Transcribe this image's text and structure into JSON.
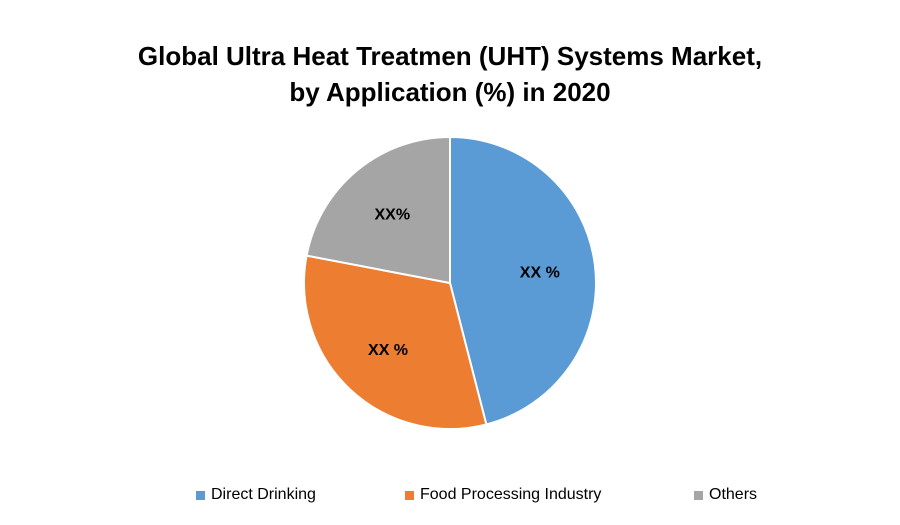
{
  "chart_data": {
    "type": "pie",
    "title_lines": [
      "Global Ultra Heat Treatmen (UHT) Systems Market,",
      "by Application (%) in 2020"
    ],
    "legend_position": "bottom",
    "slices": [
      {
        "name": "Direct Drinking",
        "value": 46,
        "label": "XX %",
        "color": "#5B9BD5"
      },
      {
        "name": "Food Processing Industry",
        "value": 32,
        "label": "XX %",
        "color": "#ED7D31"
      },
      {
        "name": "Others",
        "value": 22,
        "label": "XX%",
        "color": "#A5A5A5"
      }
    ]
  }
}
